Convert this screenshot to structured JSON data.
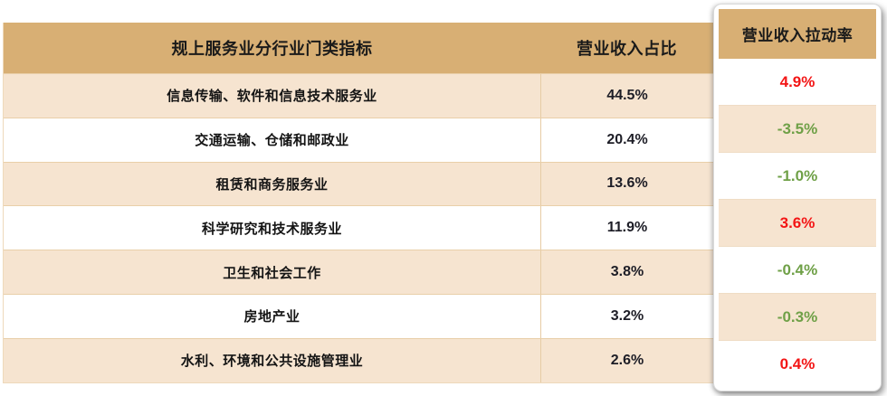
{
  "colors": {
    "header_tan": "#D8AF74",
    "row_beige": "#F6E4D0",
    "row_line": "#E9CFA9",
    "positive_red": "#F31515",
    "negative_green": "#6FA047",
    "text_dark": "#1A1A1A"
  },
  "table": {
    "header": {
      "indicator": "规上服务业分行业门类指标",
      "share": "营业收入占比"
    },
    "rows": [
      {
        "label": "信息传输、软件和信息技术服务业",
        "share": "44.5%"
      },
      {
        "label": "交通运输、仓储和邮政业",
        "share": "20.4%"
      },
      {
        "label": "租赁和商务服务业",
        "share": "13.6%"
      },
      {
        "label": "科学研究和技术服务业",
        "share": "11.9%"
      },
      {
        "label": "卫生和社会工作",
        "share": "3.8%"
      },
      {
        "label": "房地产业",
        "share": "3.2%"
      },
      {
        "label": "水利、环境和公共设施管理业",
        "share": "2.6%"
      }
    ]
  },
  "pull_panel": {
    "header": "营业收入拉动率",
    "rows": [
      {
        "value": "4.9%",
        "trend": "positive"
      },
      {
        "value": "-3.5%",
        "trend": "negative"
      },
      {
        "value": "-1.0%",
        "trend": "negative"
      },
      {
        "value": "3.6%",
        "trend": "positive"
      },
      {
        "value": "-0.4%",
        "trend": "negative"
      },
      {
        "value": "-0.3%",
        "trend": "negative"
      },
      {
        "value": "0.4%",
        "trend": "positive"
      }
    ]
  },
  "chart_data": {
    "type": "table",
    "title": "规上服务业分行业门类指标",
    "columns": [
      "规上服务业分行业门类指标",
      "营业收入占比",
      "营业收入拉动率"
    ],
    "rows": [
      [
        "信息传输、软件和信息技术服务业",
        "44.5%",
        "4.9%"
      ],
      [
        "交通运输、仓储和邮政业",
        "20.4%",
        "-3.5%"
      ],
      [
        "租赁和商务服务业",
        "13.6%",
        "-1.0%"
      ],
      [
        "科学研究和技术服务业",
        "11.9%",
        "3.6%"
      ],
      [
        "卫生和社会工作",
        "3.8%",
        "-0.4%"
      ],
      [
        "房地产业",
        "3.2%",
        "-0.3%"
      ],
      [
        "水利、环境和公共设施管理业",
        "2.6%",
        "0.4%"
      ]
    ],
    "notes": "Pull-rate column rendered as raised highlight card; positive values red, negative values green; rows alternate white/beige"
  }
}
